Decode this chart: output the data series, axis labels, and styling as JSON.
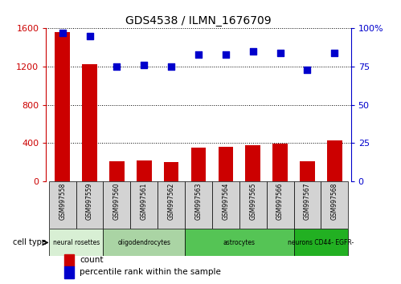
{
  "title": "GDS4538 / ILMN_1676709",
  "samples": [
    "GSM997558",
    "GSM997559",
    "GSM997560",
    "GSM997561",
    "GSM997562",
    "GSM997563",
    "GSM997564",
    "GSM997565",
    "GSM997566",
    "GSM997567",
    "GSM997568"
  ],
  "counts": [
    1560,
    1230,
    210,
    220,
    205,
    355,
    365,
    380,
    395,
    210,
    430
  ],
  "percentile_ranks": [
    97,
    95,
    75,
    76,
    75,
    83,
    83,
    85,
    84,
    73,
    84
  ],
  "ylim_left": [
    0,
    1600
  ],
  "ylim_right": [
    0,
    100
  ],
  "yticks_left": [
    0,
    400,
    800,
    1200,
    1600
  ],
  "yticks_right": [
    0,
    25,
    50,
    75,
    100
  ],
  "cell_types": [
    {
      "label": "neural rosettes",
      "span": [
        0,
        2
      ],
      "color": "#d8efd4"
    },
    {
      "label": "oligodendrocytes",
      "span": [
        2,
        5
      ],
      "color": "#aad4a4"
    },
    {
      "label": "astrocytes",
      "span": [
        5,
        9
      ],
      "color": "#55c455"
    },
    {
      "label": "neurons CD44- EGFR-",
      "span": [
        9,
        11
      ],
      "color": "#22b022"
    }
  ],
  "bar_color": "#cc0000",
  "dot_color": "#0000cc",
  "legend_count_label": "count",
  "legend_pct_label": "percentile rank within the sample",
  "cell_type_label": "cell type",
  "bg_color": "#ffffff",
  "tick_color_left": "#cc0000",
  "tick_color_right": "#0000cc",
  "sample_box_color": "#d3d3d3",
  "bar_width": 0.55,
  "dot_size": 30
}
